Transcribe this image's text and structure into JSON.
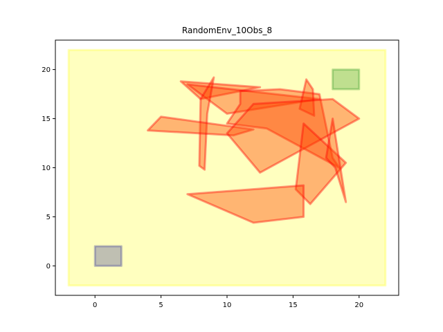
{
  "chart_data": {
    "type": "area",
    "title": "RandomEnv_10Obs_8",
    "xlabel": "",
    "ylabel": "",
    "xlim": [
      -3,
      23
    ],
    "ylim": [
      -3,
      23
    ],
    "x_ticks": [
      0,
      5,
      10,
      15,
      20
    ],
    "y_ticks": [
      0,
      5,
      10,
      15,
      20
    ],
    "grid": false,
    "legend": "none",
    "environment": {
      "color": "#ffff00",
      "opacity": 0.25,
      "points": [
        [
          -2,
          -2
        ],
        [
          22,
          -2
        ],
        [
          22,
          22
        ],
        [
          -2,
          22
        ]
      ]
    },
    "start_region": {
      "color": "#00008b",
      "opacity": 0.25,
      "points": [
        [
          0,
          0
        ],
        [
          2,
          0
        ],
        [
          2,
          2
        ],
        [
          0,
          2
        ]
      ]
    },
    "goal_region": {
      "color": "#008000",
      "opacity": 0.25,
      "points": [
        [
          18,
          18
        ],
        [
          20,
          18
        ],
        [
          20,
          20
        ],
        [
          18,
          20
        ]
      ]
    },
    "obstacle_color": "#ff4500",
    "obstacle_edge_color": "#ff0000",
    "obstacle_opacity": 0.4,
    "obstacles": [
      {
        "points": [
          [
            6.5,
            18.8
          ],
          [
            12.5,
            18.2
          ],
          [
            8.0,
            17.0
          ]
        ]
      },
      {
        "points": [
          [
            7.0,
            18.5
          ],
          [
            17.0,
            17.0
          ],
          [
            10.0,
            15.5
          ]
        ]
      },
      {
        "points": [
          [
            8.0,
            17.0
          ],
          [
            9.0,
            19.2
          ],
          [
            8.5,
            15.5
          ],
          [
            8.3,
            9.8
          ],
          [
            7.9,
            10.2
          ]
        ]
      },
      {
        "points": [
          [
            4.0,
            13.8
          ],
          [
            5.0,
            15.2
          ],
          [
            12.0,
            13.9
          ],
          [
            10.5,
            13.3
          ]
        ]
      },
      {
        "points": [
          [
            11.0,
            17.8
          ],
          [
            14.0,
            18.0
          ],
          [
            17.0,
            17.5
          ],
          [
            18.0,
            11.0
          ],
          [
            18.5,
            10.0
          ],
          [
            13.0,
            14.0
          ],
          [
            10.0,
            14.5
          ],
          [
            11.0,
            16.5
          ]
        ]
      },
      {
        "points": [
          [
            16.0,
            19.0
          ],
          [
            15.5,
            16.0
          ],
          [
            16.6,
            15.3
          ],
          [
            16.5,
            18.0
          ]
        ]
      },
      {
        "points": [
          [
            10.0,
            13.5
          ],
          [
            12.5,
            9.5
          ],
          [
            20.0,
            15.0
          ],
          [
            18.0,
            17.0
          ],
          [
            12.0,
            16.5
          ]
        ]
      },
      {
        "points": [
          [
            15.8,
            14.5
          ],
          [
            19.0,
            10.5
          ],
          [
            16.3,
            6.3
          ],
          [
            15.2,
            7.8
          ]
        ]
      },
      {
        "points": [
          [
            7.0,
            7.3
          ],
          [
            12.0,
            4.4
          ],
          [
            15.8,
            5.0
          ],
          [
            15.8,
            8.2
          ]
        ]
      },
      {
        "points": [
          [
            18.0,
            15.0
          ],
          [
            19.0,
            6.5
          ],
          [
            18.2,
            10.0
          ],
          [
            17.5,
            11.0
          ]
        ]
      }
    ]
  }
}
